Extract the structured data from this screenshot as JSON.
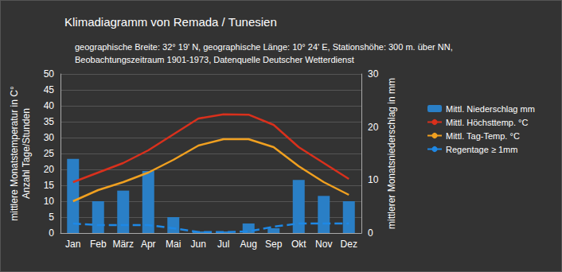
{
  "chart_data": {
    "type": "bar",
    "title": "Klimadiagramm von Remada / Tunesien",
    "subtitle": "geographische Breite: 32° 19' N, geographische Länge: 10° 24' E, Stationshöhe: 300 m. über NN,\nBeobachtungszeitraum 1901-1973, Datenquelle Deutscher Wetterdienst",
    "ylabel": "mittlere Monatstemperatur in C°\nAnzahl Tage/Stunden",
    "y2label": "mittlerer Monatsniederschlag in mm",
    "categories": [
      "Jan",
      "Feb",
      "März",
      "Apr",
      "Mai",
      "Jun",
      "Jul",
      "Aug",
      "Sep",
      "Okt",
      "Nov",
      "Dez"
    ],
    "series": [
      {
        "name": "Mittl. Niederschlag mm",
        "type": "bar",
        "axis": "y2",
        "color": "#2a7fc6",
        "values": [
          14,
          6,
          8,
          11.7,
          3,
          0.3,
          0.3,
          1.8,
          0.9,
          10,
          7,
          6
        ]
      },
      {
        "name": "Mittl. Höchsttemp. °C",
        "type": "line",
        "line_style": "solid",
        "color": "#d9301c",
        "values": [
          16,
          19,
          22,
          26,
          31,
          36,
          37.3,
          37.2,
          34,
          27,
          22,
          17
        ]
      },
      {
        "name": "Mittl. Tag-Temp. °C",
        "type": "line",
        "line_style": "solid",
        "color": "#f0a020",
        "values": [
          10,
          13.5,
          16,
          19,
          23,
          27.5,
          29.5,
          29.5,
          27,
          21,
          16,
          12
        ]
      },
      {
        "name": "Regentage ≥ 1mm",
        "type": "line",
        "line_style": "dashed",
        "color": "#1e88e5",
        "values": [
          3,
          2.5,
          2.5,
          2.5,
          1.5,
          0.3,
          0.3,
          0.5,
          2,
          3,
          3,
          3
        ]
      }
    ],
    "ylim": [
      0,
      50
    ],
    "yticks": [
      0,
      5,
      10,
      15,
      20,
      25,
      30,
      35,
      40,
      45,
      50
    ],
    "y2lim": [
      0,
      30
    ],
    "y2ticks": [
      0,
      10,
      20,
      30
    ],
    "grid": true,
    "legend": "right"
  }
}
